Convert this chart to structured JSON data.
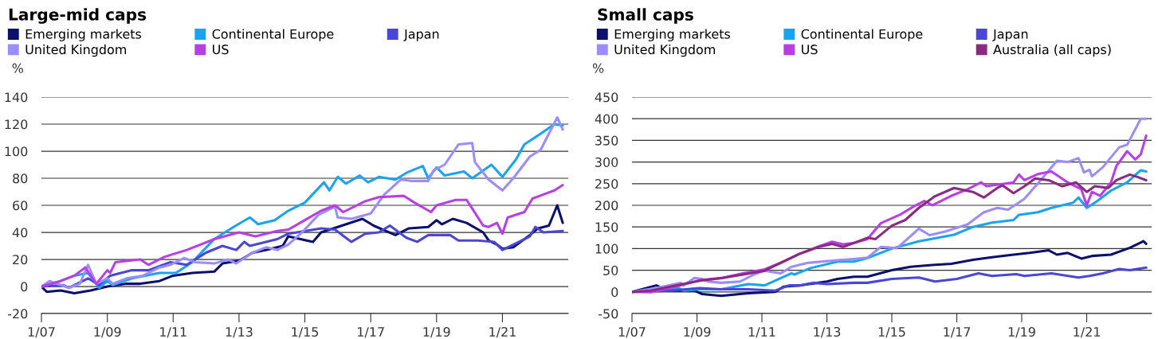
{
  "chart_data": [
    {
      "type": "line",
      "title": "Large-mid caps",
      "ylabel": "%",
      "xlim": [
        "2007-01",
        "2023-01"
      ],
      "xticks": [
        {
          "value": "2007-01",
          "label": "1/07"
        },
        {
          "value": "2009-01",
          "label": "1/09"
        },
        {
          "value": "2011-01",
          "label": "1/11"
        },
        {
          "value": "2013-01",
          "label": "1/13"
        },
        {
          "value": "2015-01",
          "label": "1/15"
        },
        {
          "value": "2017-01",
          "label": "1/17"
        },
        {
          "value": "2019-01",
          "label": "1/19"
        },
        {
          "value": "2021-01",
          "label": "1/21"
        }
      ],
      "ylim": [
        -20,
        140
      ],
      "yticks": [
        -20,
        0,
        20,
        40,
        60,
        80,
        100,
        120,
        140
      ],
      "grid": "y",
      "legend": "top left",
      "series": [
        {
          "name": "Emerging markets",
          "color": "#0b0f6e",
          "x": [
            "2007-01",
            "2007-03",
            "2007-08",
            "2008-01",
            "2008-07",
            "2009-01",
            "2009-08",
            "2010-01",
            "2010-08",
            "2011-01",
            "2011-08",
            "2012-04",
            "2012-07",
            "2013-01",
            "2013-06",
            "2013-11",
            "2014-05",
            "2014-07",
            "2015-04",
            "2015-07",
            "2016-01",
            "2016-10",
            "2017-02",
            "2017-10",
            "2018-03",
            "2018-10",
            "2019-01",
            "2019-03",
            "2019-07",
            "2019-12",
            "2020-06",
            "2020-08",
            "2020-11",
            "2021-01",
            "2021-05",
            "2021-11",
            "2022-02",
            "2022-06",
            "2022-09",
            "2022-11"
          ],
          "values": [
            0,
            -4,
            -3,
            -5,
            -3,
            0,
            2,
            2,
            4,
            8,
            10,
            11,
            17,
            19,
            25,
            27,
            30,
            37,
            33,
            40,
            44,
            50,
            45,
            38,
            43,
            44,
            49,
            46,
            50,
            47,
            40,
            34,
            31,
            28,
            29,
            38,
            43,
            45,
            60,
            47
          ]
        },
        {
          "name": "Continental Europe",
          "color": "#1aa3f0",
          "x": [
            "2007-01",
            "2007-08",
            "2008-01",
            "2008-06",
            "2008-10",
            "2009-01",
            "2009-03",
            "2009-10",
            "2010-08",
            "2011-02",
            "2011-08",
            "2012-04",
            "2012-11",
            "2013-05",
            "2013-08",
            "2014-02",
            "2014-07",
            "2015-01",
            "2015-08",
            "2015-10",
            "2016-01",
            "2016-04",
            "2016-09",
            "2016-12",
            "2017-04",
            "2017-10",
            "2018-02",
            "2018-08",
            "2018-10",
            "2019-01",
            "2019-04",
            "2019-11",
            "2020-02",
            "2020-09",
            "2021-01",
            "2021-06",
            "2021-09",
            "2022-03",
            "2022-08",
            "2022-11"
          ],
          "values": [
            0,
            4,
            8,
            10,
            -1,
            4,
            1,
            6,
            10,
            10,
            18,
            35,
            44,
            51,
            46,
            49,
            56,
            62,
            77,
            71,
            81,
            76,
            82,
            77,
            81,
            79,
            84,
            89,
            80,
            88,
            82,
            85,
            80,
            90,
            81,
            94,
            105,
            113,
            120,
            119
          ]
        },
        {
          "name": "Japan",
          "color": "#4b47d6",
          "x": [
            "2007-01",
            "2007-09",
            "2007-11",
            "2008-06",
            "2008-10",
            "2009-02",
            "2009-10",
            "2010-04",
            "2010-12",
            "2011-06",
            "2012-01",
            "2012-07",
            "2012-12",
            "2013-03",
            "2013-05",
            "2014-03",
            "2014-07",
            "2015-07",
            "2015-12",
            "2016-06",
            "2016-11",
            "2017-04",
            "2017-08",
            "2018-02",
            "2018-06",
            "2018-10",
            "2019-06",
            "2019-09",
            "2020-04",
            "2020-10",
            "2021-01",
            "2021-11",
            "2022-01",
            "2022-04",
            "2022-11"
          ],
          "values": [
            0,
            1,
            -1,
            6,
            1,
            8,
            12,
            12,
            18,
            16,
            25,
            30,
            27,
            33,
            30,
            35,
            39,
            43,
            42,
            33,
            39,
            40,
            45,
            36,
            33,
            38,
            38,
            34,
            34,
            33,
            27,
            37,
            44,
            40,
            41
          ]
        },
        {
          "name": "United Kingdom",
          "color": "#9b8cff",
          "x": [
            "2007-01",
            "2007-04",
            "2007-11",
            "2008-03",
            "2008-06",
            "2008-09",
            "2009-01",
            "2009-03",
            "2009-08",
            "2010-02",
            "2010-08",
            "2010-12",
            "2011-05",
            "2011-09",
            "2012-04",
            "2012-09",
            "2012-12",
            "2013-06",
            "2013-11",
            "2014-03",
            "2014-07",
            "2014-12",
            "2015-06",
            "2015-12",
            "2016-01",
            "2016-06",
            "2017-01",
            "2017-06",
            "2017-12",
            "2018-04",
            "2018-10",
            "2018-12",
            "2019-04",
            "2019-09",
            "2020-02",
            "2020-03",
            "2020-08",
            "2021-01",
            "2021-05",
            "2021-11",
            "2022-03",
            "2022-09",
            "2022-11"
          ],
          "values": [
            0,
            4,
            -1,
            2,
            16,
            2,
            6,
            2,
            6,
            8,
            14,
            16,
            21,
            18,
            17,
            20,
            17,
            25,
            29,
            27,
            31,
            40,
            53,
            59,
            51,
            50,
            54,
            68,
            79,
            78,
            78,
            86,
            90,
            105,
            106,
            92,
            79,
            71,
            80,
            96,
            101,
            125,
            116
          ]
        },
        {
          "name": "US",
          "color": "#b83ee6",
          "x": [
            "2007-01",
            "2007-08",
            "2008-01",
            "2008-05",
            "2008-09",
            "2009-01",
            "2009-02",
            "2009-04",
            "2010-01",
            "2010-04",
            "2010-10",
            "2011-06",
            "2012-04",
            "2013-01",
            "2013-07",
            "2014-03",
            "2014-07",
            "2015-01",
            "2015-07",
            "2015-12",
            "2016-03",
            "2016-11",
            "2017-04",
            "2018-01",
            "2018-05",
            "2018-11",
            "2019-01",
            "2019-08",
            "2019-12",
            "2020-06",
            "2020-08",
            "2020-11",
            "2021-01",
            "2021-03",
            "2021-09",
            "2021-12",
            "2022-04",
            "2022-08",
            "2022-11"
          ],
          "values": [
            0,
            4,
            8,
            14,
            2,
            12,
            10,
            18,
            20,
            16,
            22,
            27,
            35,
            40,
            37,
            41,
            42,
            49,
            56,
            60,
            55,
            63,
            66,
            67,
            62,
            55,
            60,
            64,
            64,
            45,
            44,
            47,
            39,
            51,
            55,
            65,
            68,
            71,
            75
          ]
        }
      ]
    },
    {
      "type": "line",
      "title": "Small caps",
      "ylabel": "%",
      "xlim": [
        "2007-01",
        "2023-01"
      ],
      "xticks": [
        {
          "value": "2007-01",
          "label": "1/07"
        },
        {
          "value": "2009-01",
          "label": "1/09"
        },
        {
          "value": "2011-01",
          "label": "1/11"
        },
        {
          "value": "2013-01",
          "label": "1/13"
        },
        {
          "value": "2015-01",
          "label": "1/15"
        },
        {
          "value": "2017-01",
          "label": "1/17"
        },
        {
          "value": "2019-01",
          "label": "1/19"
        },
        {
          "value": "2021-01",
          "label": "1/21"
        }
      ],
      "ylim": [
        -50,
        450
      ],
      "yticks": [
        -50,
        0,
        50,
        100,
        150,
        200,
        250,
        300,
        350,
        400,
        450
      ],
      "grid": "y",
      "legend": "top left",
      "series": [
        {
          "name": "Emerging markets",
          "color": "#0b0f6e",
          "x": [
            "2007-01",
            "2007-10",
            "2008-02",
            "2008-12",
            "2009-03",
            "2009-10",
            "2010-08",
            "2011-06",
            "2011-09",
            "2012-03",
            "2013-01",
            "2013-05",
            "2013-11",
            "2014-04",
            "2015-01",
            "2015-08",
            "2016-04",
            "2016-11",
            "2017-07",
            "2018-02",
            "2018-10",
            "2019-04",
            "2019-11",
            "2020-02",
            "2020-06",
            "2020-11",
            "2021-03",
            "2021-10",
            "2022-05",
            "2022-10",
            "2022-11"
          ],
          "values": [
            0,
            15,
            3,
            3,
            -5,
            -9,
            -3,
            0,
            12,
            15,
            24,
            30,
            35,
            35,
            50,
            58,
            62,
            65,
            74,
            80,
            86,
            90,
            96,
            86,
            90,
            77,
            83,
            86,
            102,
            117,
            111
          ]
        },
        {
          "name": "Continental Europe",
          "color": "#1aa3f0",
          "x": [
            "2007-01",
            "2008-06",
            "2008-08",
            "2009-02",
            "2009-10",
            "2010-08",
            "2011-02",
            "2011-12",
            "2012-01",
            "2012-07",
            "2012-11",
            "2013-05",
            "2013-11",
            "2014-04",
            "2015-01",
            "2015-11",
            "2016-12",
            "2017-07",
            "2018-02",
            "2018-10",
            "2018-12",
            "2019-07",
            "2019-12",
            "2020-08",
            "2020-10",
            "2021-01",
            "2021-05",
            "2021-10",
            "2022-04",
            "2022-09",
            "2022-11"
          ],
          "values": [
            0,
            9,
            3,
            6,
            6,
            18,
            15,
            43,
            40,
            55,
            61,
            70,
            70,
            78,
            100,
            117,
            132,
            150,
            160,
            166,
            178,
            184,
            194,
            206,
            218,
            194,
            210,
            234,
            253,
            281,
            278
          ]
        },
        {
          "name": "Japan",
          "color": "#4b47d6",
          "x": [
            "2007-01",
            "2008-03",
            "2009-02",
            "2009-10",
            "2010-08",
            "2011-06",
            "2011-11",
            "2012-03",
            "2012-08",
            "2013-01",
            "2013-11",
            "2014-04",
            "2015-01",
            "2015-11",
            "2016-05",
            "2017-01",
            "2017-09",
            "2018-02",
            "2018-11",
            "2019-02",
            "2019-12",
            "2020-10",
            "2021-02",
            "2021-07",
            "2022-01",
            "2022-05",
            "2022-11"
          ],
          "values": [
            0,
            3,
            9,
            6,
            6,
            3,
            15,
            15,
            21,
            18,
            21,
            21,
            30,
            33,
            24,
            30,
            43,
            37,
            41,
            37,
            43,
            33,
            37,
            43,
            53,
            50,
            56
          ]
        },
        {
          "name": "United Kingdom",
          "color": "#9b8cff",
          "x": [
            "2007-01",
            "2007-10",
            "2008-07",
            "2008-08",
            "2008-12",
            "2009-03",
            "2009-05",
            "2009-10",
            "2010-05",
            "2010-10",
            "2011-02",
            "2011-08",
            "2011-12",
            "2012-06",
            "2012-11",
            "2013-05",
            "2013-11",
            "2014-04",
            "2014-09",
            "2015-03",
            "2015-11",
            "2016-03",
            "2016-09",
            "2017-05",
            "2017-11",
            "2018-04",
            "2018-08",
            "2019-02",
            "2019-08",
            "2020-02",
            "2020-06",
            "2020-10",
            "2020-12",
            "2021-02",
            "2021-03",
            "2021-07",
            "2022-01",
            "2022-04",
            "2022-09",
            "2022-11"
          ],
          "values": [
            0,
            9,
            21,
            15,
            32,
            30,
            24,
            21,
            24,
            40,
            49,
            43,
            58,
            67,
            70,
            73,
            76,
            79,
            104,
            101,
            146,
            131,
            140,
            156,
            184,
            194,
            190,
            215,
            258,
            303,
            300,
            309,
            276,
            282,
            267,
            288,
            334,
            340,
            400,
            400
          ]
        },
        {
          "name": "US",
          "color": "#b83ee6",
          "x": [
            "2007-01",
            "2007-08",
            "2008-07",
            "2009-02",
            "2009-10",
            "2010-06",
            "2011-02",
            "2011-09",
            "2012-03",
            "2012-10",
            "2013-03",
            "2013-07",
            "2013-11",
            "2014-04",
            "2014-09",
            "2015-04",
            "2015-09",
            "2016-01",
            "2016-04",
            "2016-11",
            "2017-05",
            "2017-10",
            "2017-12",
            "2018-10",
            "2018-12",
            "2019-02",
            "2019-07",
            "2019-12",
            "2020-06",
            "2020-11",
            "2021-01",
            "2021-03",
            "2021-06",
            "2021-10",
            "2021-12",
            "2022-04",
            "2022-07",
            "2022-09",
            "2022-11"
          ],
          "values": [
            0,
            -1,
            15,
            27,
            32,
            43,
            52,
            70,
            88,
            105,
            116,
            110,
            113,
            122,
            159,
            178,
            197,
            210,
            200,
            222,
            237,
            253,
            244,
            253,
            271,
            258,
            272,
            278,
            253,
            237,
            200,
            231,
            222,
            253,
            291,
            325,
            306,
            318,
            361
          ]
        },
        {
          "name": "Australia (all caps)",
          "color": "#8a2a80",
          "x": [
            "2007-01",
            "2007-08",
            "2008-03",
            "2009-02",
            "2009-10",
            "2010-06",
            "2011-02",
            "2011-09",
            "2012-03",
            "2012-10",
            "2013-03",
            "2013-07",
            "2013-11",
            "2014-04",
            "2014-07",
            "2015-01",
            "2015-06",
            "2015-11",
            "2016-05",
            "2016-12",
            "2017-07",
            "2017-11",
            "2018-04",
            "2018-06",
            "2018-10",
            "2019-02",
            "2019-06",
            "2019-11",
            "2020-04",
            "2020-09",
            "2021-01",
            "2021-04",
            "2021-09",
            "2021-12",
            "2022-05",
            "2022-08",
            "2022-11"
          ],
          "values": [
            0,
            3,
            12,
            26,
            32,
            40,
            49,
            70,
            88,
            104,
            111,
            104,
            113,
            125,
            122,
            153,
            166,
            194,
            221,
            240,
            231,
            218,
            240,
            246,
            228,
            244,
            262,
            258,
            244,
            253,
            231,
            244,
            240,
            258,
            271,
            265,
            258
          ]
        }
      ]
    }
  ]
}
